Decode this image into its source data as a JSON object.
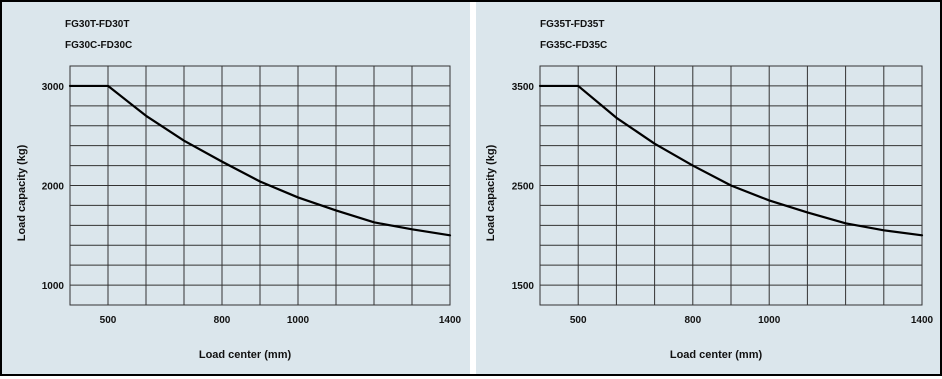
{
  "colors": {
    "background": "#dbe6ec",
    "grid": "#333333",
    "curve": "#000000",
    "border": "#000000"
  },
  "chart_data": [
    {
      "type": "line",
      "title_lines": [
        "FG30T-FD30T",
        "FG30C-FD30C"
      ],
      "xlabel": "Load center (mm)",
      "ylabel": "Load capacity (kg)",
      "xlim": [
        400,
        1400
      ],
      "ylim": [
        800,
        3200
      ],
      "xticks": [
        500,
        800,
        1000,
        1400
      ],
      "yticks": [
        1000,
        2000,
        3000
      ],
      "grid": true,
      "series": [
        {
          "x": [
            400,
            500,
            600,
            700,
            800,
            900,
            1000,
            1100,
            1200,
            1300,
            1400
          ],
          "y": [
            3000,
            3000,
            2700,
            2450,
            2240,
            2040,
            1880,
            1750,
            1630,
            1560,
            1500
          ]
        }
      ]
    },
    {
      "type": "line",
      "title_lines": [
        "FG35T-FD35T",
        "FG35C-FD35C"
      ],
      "xlabel": "Load center (mm)",
      "ylabel": "Load capacity (kg)",
      "xlim": [
        400,
        1400
      ],
      "ylim": [
        1300,
        3700
      ],
      "xticks": [
        500,
        800,
        1000,
        1400
      ],
      "yticks": [
        1500,
        2500,
        3500
      ],
      "grid": true,
      "series": [
        {
          "x": [
            400,
            500,
            600,
            700,
            800,
            900,
            1000,
            1100,
            1200,
            1300,
            1400
          ],
          "y": [
            3500,
            3500,
            3180,
            2920,
            2700,
            2500,
            2350,
            2230,
            2120,
            2050,
            2000
          ]
        }
      ]
    }
  ]
}
